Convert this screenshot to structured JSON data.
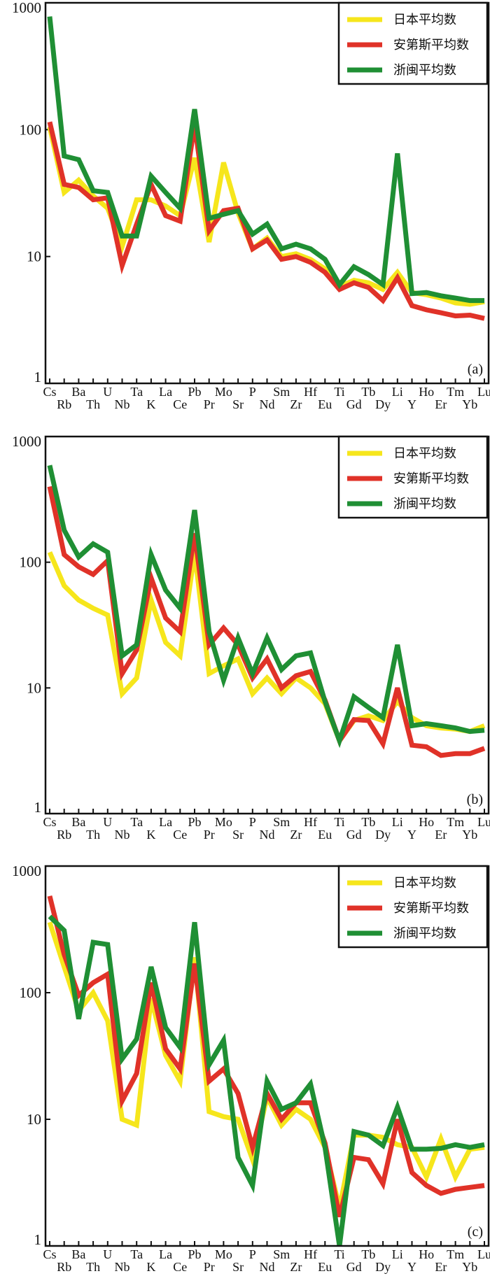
{
  "chart_data": [
    {
      "type": "line",
      "panel_label": "(a)",
      "yscale": "log",
      "ylim": [
        1,
        1000
      ],
      "y_ticks": [
        "1",
        "10",
        "100",
        "1000"
      ],
      "legend_position": "top-right",
      "categories": [
        "Cs",
        "Rb",
        "Ba",
        "Th",
        "U",
        "Nb",
        "Ta",
        "K",
        "La",
        "Ce",
        "Pb",
        "Pr",
        "Mo",
        "Sr",
        "P",
        "Nd",
        "Sm",
        "Zr",
        "Hf",
        "Eu",
        "Ti",
        "Gd",
        "Tb",
        "Dy",
        "Li",
        "Y",
        "Ho",
        "Er",
        "Tm",
        "Yb",
        "Lu"
      ],
      "series": [
        {
          "name": "日本平均数",
          "color": "#f6e61c",
          "values": [
            105,
            32,
            40,
            30,
            24,
            12,
            28,
            28,
            25,
            21,
            60,
            13,
            55,
            22,
            11.5,
            14,
            10,
            10.5,
            9.5,
            8,
            5.8,
            6.5,
            6.2,
            5.5,
            7.5,
            5.2,
            5.0,
            4.7,
            4.3,
            4.2,
            4.4
          ]
        },
        {
          "name": "安第斯平均数",
          "color": "#e03228",
          "values": [
            115,
            37,
            35,
            28,
            29,
            8.5,
            18,
            37,
            21,
            19,
            110,
            16,
            23,
            24,
            11.5,
            13.5,
            9.5,
            10,
            9,
            7.5,
            5.5,
            6.2,
            5.7,
            4.5,
            6.8,
            4.1,
            3.8,
            3.6,
            3.4,
            3.45,
            3.25
          ]
        },
        {
          "name": "浙闽平均数",
          "color": "#1f8f34",
          "values": [
            780,
            62,
            58,
            33,
            32,
            14.5,
            14.5,
            43,
            32,
            24,
            145,
            20,
            21.5,
            23,
            15,
            18,
            11.5,
            12.5,
            11.5,
            9.5,
            6,
            8.3,
            7.2,
            6,
            65,
            5.1,
            5.2,
            4.9,
            4.7,
            4.5,
            4.5
          ]
        }
      ]
    },
    {
      "type": "line",
      "panel_label": "(b)",
      "yscale": "log",
      "ylim": [
        1,
        1000
      ],
      "y_ticks": [
        "1",
        "10",
        "100",
        "1000"
      ],
      "legend_position": "top-right",
      "categories": [
        "Cs",
        "Rb",
        "Ba",
        "Th",
        "U",
        "Nb",
        "Ta",
        "K",
        "La",
        "Ce",
        "Pb",
        "Pr",
        "Mo",
        "Sr",
        "P",
        "Nd",
        "Sm",
        "Zr",
        "Hf",
        "Eu",
        "Ti",
        "Gd",
        "Tb",
        "Dy",
        "Li",
        "Y",
        "Ho",
        "Er",
        "Tm",
        "Yb",
        "Lu"
      ],
      "series": [
        {
          "name": "日本平均数",
          "color": "#f6e61c",
          "values": [
            120,
            65,
            50,
            43,
            38,
            9,
            12,
            50,
            23,
            18,
            120,
            13,
            15,
            17,
            9,
            12,
            9,
            12,
            10,
            7.5,
            3.8,
            5.5,
            6,
            5.5,
            7.8,
            5.8,
            5,
            4.8,
            4.7,
            4.5,
            5
          ]
        },
        {
          "name": "安第斯平均数",
          "color": "#e03228",
          "values": [
            400,
            115,
            92,
            80,
            103,
            13,
            20,
            75,
            36,
            28,
            170,
            22,
            30,
            22,
            12,
            17,
            10,
            12.5,
            13.5,
            8,
            3.8,
            5.6,
            5.5,
            3.6,
            10,
            3.5,
            3.4,
            2.9,
            3,
            3,
            3.3
          ]
        },
        {
          "name": "浙闽平均数",
          "color": "#1f8f34",
          "values": [
            590,
            180,
            110,
            140,
            120,
            18,
            22,
            115,
            60,
            43,
            260,
            28,
            11.5,
            25,
            13,
            25,
            14,
            18,
            19,
            7.8,
            3.8,
            8.5,
            7,
            5.8,
            22,
            5,
            5.2,
            5,
            4.8,
            4.5,
            4.6
          ]
        }
      ]
    },
    {
      "type": "line",
      "panel_label": "(c)",
      "yscale": "log",
      "ylim": [
        1,
        1000
      ],
      "y_ticks": [
        "1",
        "10",
        "100",
        "1000"
      ],
      "legend_position": "top-right",
      "categories": [
        "Cs",
        "Rb",
        "Ba",
        "Th",
        "U",
        "Nb",
        "Ta",
        "K",
        "La",
        "Ce",
        "Pb",
        "Pr",
        "Mo",
        "Sr",
        "P",
        "Nd",
        "Sm",
        "Zr",
        "Hf",
        "Eu",
        "Ti",
        "Gd",
        "Tb",
        "Dy",
        "Li",
        "Y",
        "Ho",
        "Er",
        "Tm",
        "Yb",
        "Lu"
      ],
      "series": [
        {
          "name": "日本平均数",
          "color": "#f6e61c",
          "values": [
            360,
            160,
            72,
            100,
            60,
            10,
            9,
            90,
            32,
            20,
            190,
            11.5,
            10.5,
            10,
            4.8,
            15,
            9,
            12,
            10,
            6,
            2,
            7.5,
            7.5,
            7.2,
            6.3,
            6,
            3.5,
            7,
            3.5,
            5.8,
            6
          ]
        },
        {
          "name": "安第斯平均数",
          "color": "#e03228",
          "values": [
            580,
            200,
            95,
            120,
            140,
            14,
            23,
            120,
            36,
            25,
            170,
            20,
            25,
            16,
            6,
            16,
            10,
            13.5,
            13.5,
            6.5,
            1.7,
            5,
            4.8,
            3.1,
            10,
            3.8,
            3,
            2.6,
            2.8,
            2.9,
            3
          ]
        },
        {
          "name": "浙闽平均数",
          "color": "#1f8f34",
          "values": [
            400,
            310,
            62,
            250,
            240,
            30,
            43,
            160,
            53,
            37,
            360,
            27,
            42,
            5,
            3,
            20,
            12,
            13.5,
            19,
            6,
            1,
            8,
            7.5,
            6.2,
            12.5,
            5.8,
            5.8,
            5.9,
            6.3,
            6,
            6.3
          ]
        }
      ]
    }
  ]
}
